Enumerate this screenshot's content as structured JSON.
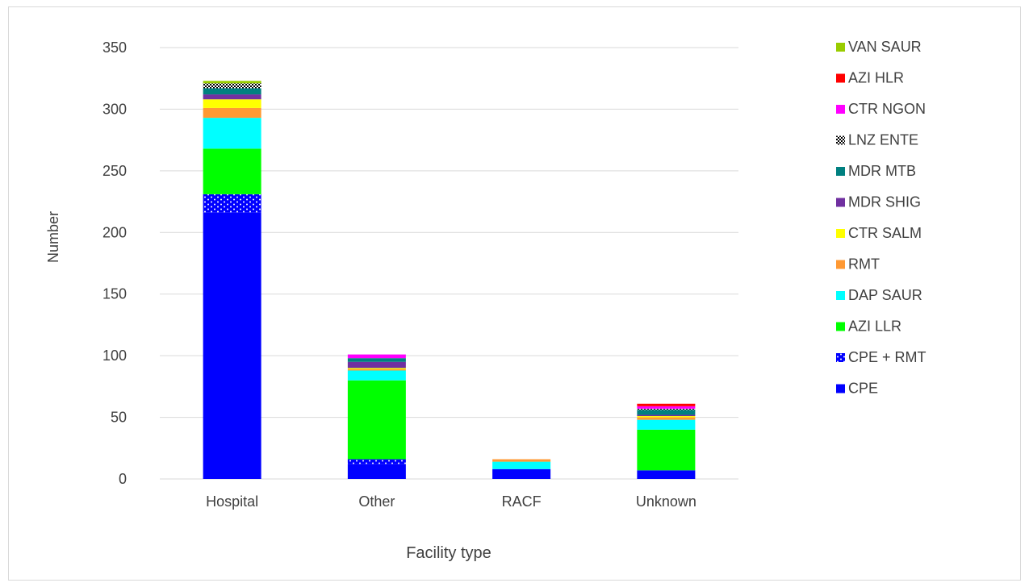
{
  "chart_data": {
    "type": "bar",
    "stacked": true,
    "xlabel": "Facility type",
    "ylabel": "Number",
    "ylim": [
      0,
      350
    ],
    "yticks": [
      0,
      50,
      100,
      150,
      200,
      250,
      300,
      350
    ],
    "grid": true,
    "legend_placement": "right",
    "categories": [
      "Hospital",
      "Other",
      "RACF",
      "Unknown"
    ],
    "series": [
      {
        "name": "CPE",
        "color": "#0000ff",
        "pattern": "solid",
        "values": [
          216,
          12,
          8,
          7
        ]
      },
      {
        "name": "CPE + RMT",
        "color": "#0000ff",
        "pattern": "dots",
        "values": [
          15,
          4,
          0,
          0
        ]
      },
      {
        "name": "AZI LLR",
        "color": "#00ff00",
        "pattern": "solid",
        "values": [
          37,
          64,
          0,
          33
        ]
      },
      {
        "name": "DAP SAUR",
        "color": "#00ffff",
        "pattern": "solid",
        "values": [
          25,
          8,
          6,
          8
        ]
      },
      {
        "name": "RMT",
        "color": "#ff9933",
        "pattern": "solid",
        "values": [
          8,
          1,
          2,
          2
        ]
      },
      {
        "name": "CTR SALM",
        "color": "#ffff00",
        "pattern": "solid",
        "values": [
          7,
          1,
          0,
          1
        ]
      },
      {
        "name": "MDR SHIG",
        "color": "#7030a0",
        "pattern": "solid",
        "values": [
          4,
          5,
          0,
          1
        ]
      },
      {
        "name": "MDR MTB",
        "color": "#008080",
        "pattern": "solid",
        "values": [
          5,
          3,
          0,
          4
        ]
      },
      {
        "name": "LNZ ENTE",
        "color": "#000000",
        "pattern": "checker",
        "values": [
          4,
          0,
          0,
          1
        ]
      },
      {
        "name": "CTR NGON",
        "color": "#ff00ff",
        "pattern": "solid",
        "values": [
          0,
          3,
          0,
          2
        ]
      },
      {
        "name": "AZI HLR",
        "color": "#ff0000",
        "pattern": "solid",
        "values": [
          0,
          0,
          0,
          2
        ]
      },
      {
        "name": "VAN SAUR",
        "color": "#99cc00",
        "pattern": "solid",
        "values": [
          2,
          0,
          0,
          0
        ]
      }
    ]
  }
}
